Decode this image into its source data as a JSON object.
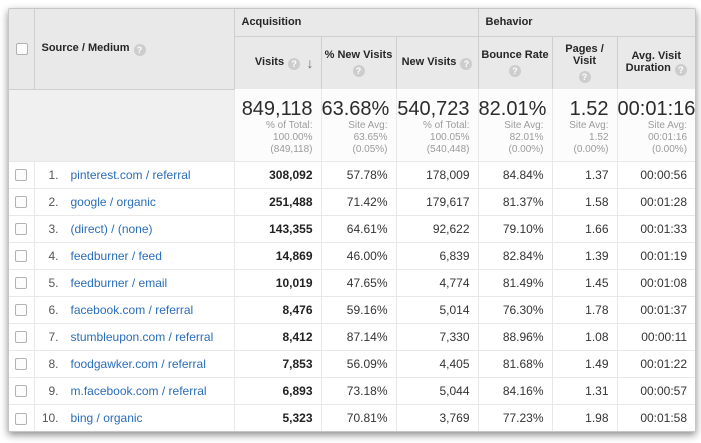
{
  "icons": {
    "help": "?",
    "sort_descending": "↓"
  },
  "colors": {
    "link": "#2a6db9",
    "header_bg": "#e9e9e9"
  },
  "table": {
    "dimension_header": "Source / Medium",
    "groups": {
      "acquisition": "Acquisition",
      "behavior": "Behavior"
    },
    "columns": {
      "visits": "Visits",
      "new_pct": "% New Visits",
      "new_visits": "New Visits",
      "bounce": "Bounce Rate",
      "pages": "Pages / Visit",
      "duration": "Avg. Visit Duration"
    },
    "summary": {
      "visits": {
        "value": "849,118",
        "sub": [
          "% of Total:",
          "100.00%",
          "(849,118)"
        ]
      },
      "new_pct": {
        "value": "63.68%",
        "sub": [
          "Site Avg:",
          "63.65%",
          "(0.05%)"
        ]
      },
      "new_visits": {
        "value": "540,723",
        "sub": [
          "% of Total:",
          "100.05%",
          "(540,448)"
        ]
      },
      "bounce": {
        "value": "82.01%",
        "sub": [
          "Site Avg:",
          "82.01%",
          "(0.00%)"
        ]
      },
      "pages": {
        "value": "1.52",
        "sub": [
          "Site Avg:",
          "1.52 (0.00%)"
        ]
      },
      "duration": {
        "value": "00:01:16",
        "sub": [
          "Site Avg:",
          "00:01:16",
          "(0.00%)"
        ]
      }
    },
    "rows": [
      {
        "rank": "1.",
        "source": "pinterest.com / referral",
        "visits": "308,092",
        "new_pct": "57.78%",
        "new_visits": "178,009",
        "bounce": "84.84%",
        "pages": "1.37",
        "duration": "00:00:56"
      },
      {
        "rank": "2.",
        "source": "google / organic",
        "visits": "251,488",
        "new_pct": "71.42%",
        "new_visits": "179,617",
        "bounce": "81.37%",
        "pages": "1.58",
        "duration": "00:01:28"
      },
      {
        "rank": "3.",
        "source": "(direct) / (none)",
        "visits": "143,355",
        "new_pct": "64.61%",
        "new_visits": "92,622",
        "bounce": "79.10%",
        "pages": "1.66",
        "duration": "00:01:33"
      },
      {
        "rank": "4.",
        "source": "feedburner / feed",
        "visits": "14,869",
        "new_pct": "46.00%",
        "new_visits": "6,839",
        "bounce": "82.84%",
        "pages": "1.39",
        "duration": "00:01:19"
      },
      {
        "rank": "5.",
        "source": "feedburner / email",
        "visits": "10,019",
        "new_pct": "47.65%",
        "new_visits": "4,774",
        "bounce": "81.49%",
        "pages": "1.45",
        "duration": "00:01:08"
      },
      {
        "rank": "6.",
        "source": "facebook.com / referral",
        "visits": "8,476",
        "new_pct": "59.16%",
        "new_visits": "5,014",
        "bounce": "76.30%",
        "pages": "1.78",
        "duration": "00:01:37"
      },
      {
        "rank": "7.",
        "source": "stumbleupon.com / referral",
        "visits": "8,412",
        "new_pct": "87.14%",
        "new_visits": "7,330",
        "bounce": "88.96%",
        "pages": "1.08",
        "duration": "00:00:11"
      },
      {
        "rank": "8.",
        "source": "foodgawker.com / referral",
        "visits": "7,853",
        "new_pct": "56.09%",
        "new_visits": "4,405",
        "bounce": "81.68%",
        "pages": "1.49",
        "duration": "00:01:22"
      },
      {
        "rank": "9.",
        "source": "m.facebook.com / referral",
        "visits": "6,893",
        "new_pct": "73.18%",
        "new_visits": "5,044",
        "bounce": "84.16%",
        "pages": "1.31",
        "duration": "00:00:57"
      },
      {
        "rank": "10.",
        "source": "bing / organic",
        "visits": "5,323",
        "new_pct": "70.81%",
        "new_visits": "3,769",
        "bounce": "77.23%",
        "pages": "1.98",
        "duration": "00:01:58"
      }
    ]
  }
}
